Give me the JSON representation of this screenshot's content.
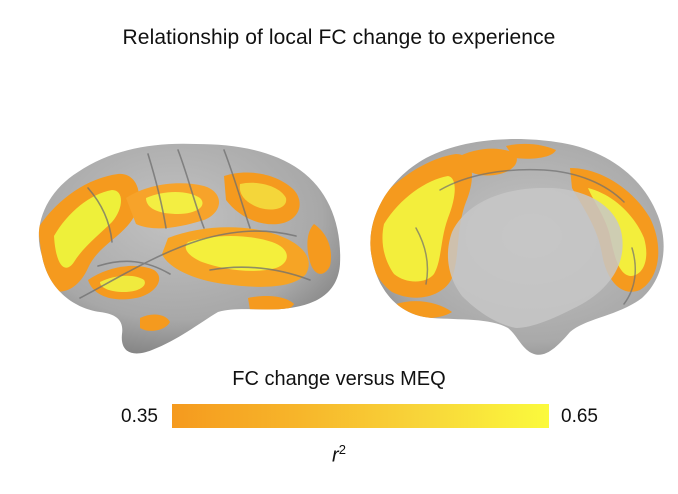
{
  "figure": {
    "title": "Relationship of local FC change to experience"
  },
  "panels": [
    {
      "view": "lateral",
      "hemisphere": "left"
    },
    {
      "view": "medial",
      "hemisphere": "left"
    }
  ],
  "colorbar": {
    "title": "FC change versus MEQ",
    "min_label": "0.35",
    "max_label": "0.65",
    "min": 0.35,
    "max": 0.65,
    "axis_label_base": "r",
    "axis_label_exponent": "2",
    "colors": [
      "#f59a1e",
      "#f7b52a",
      "#f8d63a",
      "#fbfa3c"
    ]
  },
  "colors": {
    "cortex": "#a7a7a7",
    "overlay_low": "#f59a1e",
    "overlay_high": "#f4f040"
  }
}
